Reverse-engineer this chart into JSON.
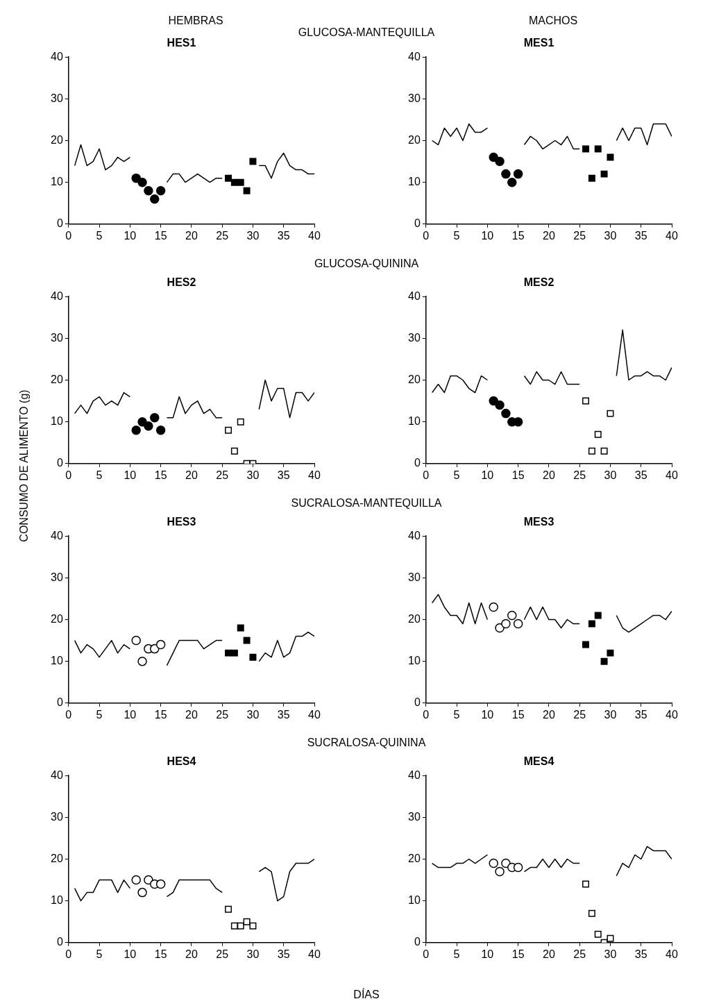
{
  "chart_data": [
    {
      "type": "line",
      "title": "HES1",
      "annotations": [
        "HEMBRAS",
        "GLUCOSA-MANTEQUILLA"
      ],
      "x": [
        1,
        2,
        3,
        4,
        5,
        6,
        7,
        8,
        9,
        10,
        11,
        12,
        13,
        14,
        15,
        16,
        17,
        18,
        19,
        20,
        21,
        22,
        23,
        24,
        25,
        26,
        27,
        28,
        29,
        30,
        31,
        32,
        33,
        34,
        35,
        36,
        37,
        38,
        39,
        40
      ],
      "xlim": [
        0,
        40
      ],
      "xticks": [
        0,
        5,
        10,
        15,
        20,
        25,
        30,
        35,
        40
      ],
      "ylim": [
        0,
        40
      ],
      "yticks": [
        0,
        10,
        20,
        30,
        40
      ],
      "marker": "none",
      "series": [
        {
          "color": "#000000",
          "values": [
            14,
            19,
            14,
            15,
            18,
            13,
            14,
            16,
            15,
            16,
            null,
            null,
            null,
            null,
            null,
            10,
            12,
            12,
            10,
            11,
            12,
            11,
            10,
            11,
            11,
            null,
            null,
            null,
            null,
            null,
            14,
            14,
            11,
            15,
            17,
            14,
            13,
            13,
            12,
            12
          ]
        },
        {
          "type": "scatter",
          "marker": "circle",
          "color": "#000000",
          "x": [
            11,
            12,
            13,
            14,
            15
          ],
          "values": [
            11,
            10,
            8,
            6,
            8
          ]
        },
        {
          "type": "scatter",
          "marker": "square",
          "color": "#000000",
          "x": [
            26,
            27,
            28,
            29,
            30
          ],
          "values": [
            11,
            10,
            10,
            8,
            15
          ]
        }
      ]
    },
    {
      "type": "line",
      "title": "MES1",
      "annotations": [
        "MACHOS"
      ],
      "x": [
        1,
        2,
        3,
        4,
        5,
        6,
        7,
        8,
        9,
        10,
        11,
        12,
        13,
        14,
        15,
        16,
        17,
        18,
        19,
        20,
        21,
        22,
        23,
        24,
        25,
        26,
        27,
        28,
        29,
        30,
        31,
        32,
        33,
        34,
        35,
        36,
        37,
        38,
        39,
        40
      ],
      "xlim": [
        0,
        40
      ],
      "xticks": [
        0,
        5,
        10,
        15,
        20,
        25,
        30,
        35,
        40
      ],
      "ylim": [
        0,
        40
      ],
      "yticks": [
        0,
        10,
        20,
        30,
        40
      ],
      "marker": "none",
      "series": [
        {
          "color": "#000000",
          "values": [
            20,
            19,
            23,
            21,
            23,
            20,
            24,
            22,
            22,
            23,
            null,
            null,
            null,
            null,
            null,
            19,
            21,
            20,
            18,
            19,
            20,
            19,
            21,
            18,
            18,
            null,
            null,
            null,
            null,
            null,
            20,
            23,
            20,
            23,
            23,
            19,
            24,
            24,
            24,
            21
          ]
        },
        {
          "type": "scatter",
          "marker": "circle",
          "color": "#000000",
          "x": [
            11,
            12,
            13,
            14,
            15
          ],
          "values": [
            16,
            15,
            12,
            10,
            12
          ]
        },
        {
          "type": "scatter",
          "marker": "square",
          "color": "#000000",
          "x": [
            26,
            27,
            28,
            29,
            30
          ],
          "values": [
            18,
            11,
            18,
            12,
            16
          ]
        }
      ]
    },
    {
      "type": "line",
      "title": "HES2",
      "annotations": [
        "GLUCOSA-QUININA"
      ],
      "x": [
        1,
        2,
        3,
        4,
        5,
        6,
        7,
        8,
        9,
        10,
        11,
        12,
        13,
        14,
        15,
        16,
        17,
        18,
        19,
        20,
        21,
        22,
        23,
        24,
        25,
        26,
        27,
        28,
        29,
        30,
        31,
        32,
        33,
        34,
        35,
        36,
        37,
        38,
        39,
        40
      ],
      "xlim": [
        0,
        40
      ],
      "xticks": [
        0,
        5,
        10,
        15,
        20,
        25,
        30,
        35,
        40
      ],
      "ylim": [
        0,
        40
      ],
      "yticks": [
        0,
        10,
        20,
        30,
        40
      ],
      "marker": "none",
      "series": [
        {
          "color": "#000000",
          "values": [
            12,
            14,
            12,
            15,
            16,
            14,
            15,
            14,
            17,
            16,
            null,
            null,
            null,
            null,
            null,
            11,
            11,
            16,
            12,
            14,
            15,
            12,
            13,
            11,
            11,
            null,
            null,
            null,
            null,
            null,
            13,
            20,
            15,
            18,
            18,
            11,
            17,
            17,
            15,
            17
          ]
        },
        {
          "type": "scatter",
          "marker": "circle",
          "color": "#000000",
          "x": [
            11,
            12,
            13,
            14,
            15
          ],
          "values": [
            8,
            10,
            9,
            11,
            8
          ]
        },
        {
          "type": "scatter",
          "marker": "square",
          "color": "#ffffff",
          "x": [
            26,
            27,
            28,
            29,
            30
          ],
          "values": [
            8,
            3,
            10,
            0,
            0
          ]
        }
      ]
    },
    {
      "type": "line",
      "title": "MES2",
      "x": [
        1,
        2,
        3,
        4,
        5,
        6,
        7,
        8,
        9,
        10,
        11,
        12,
        13,
        14,
        15,
        16,
        17,
        18,
        19,
        20,
        21,
        22,
        23,
        24,
        25,
        26,
        27,
        28,
        29,
        30,
        31,
        32,
        33,
        34,
        35,
        36,
        37,
        38,
        39,
        40
      ],
      "xlim": [
        0,
        40
      ],
      "xticks": [
        0,
        5,
        10,
        15,
        20,
        25,
        30,
        35,
        40
      ],
      "ylim": [
        0,
        40
      ],
      "yticks": [
        0,
        10,
        20,
        30,
        40
      ],
      "marker": "none",
      "series": [
        {
          "color": "#000000",
          "values": [
            17,
            19,
            17,
            21,
            21,
            20,
            18,
            17,
            21,
            20,
            null,
            null,
            null,
            null,
            null,
            21,
            19,
            22,
            20,
            20,
            19,
            22,
            19,
            19,
            19,
            null,
            null,
            null,
            null,
            null,
            21,
            32,
            20,
            21,
            21,
            22,
            21,
            21,
            20,
            23
          ]
        },
        {
          "type": "scatter",
          "marker": "circle",
          "color": "#000000",
          "x": [
            11,
            12,
            13,
            14,
            15
          ],
          "values": [
            15,
            14,
            12,
            10,
            10
          ]
        },
        {
          "type": "scatter",
          "marker": "square",
          "color": "#ffffff",
          "x": [
            26,
            27,
            28,
            29,
            30
          ],
          "values": [
            15,
            3,
            7,
            3,
            12
          ]
        }
      ]
    },
    {
      "type": "line",
      "title": "HES3",
      "annotations": [
        "SUCRALOSA-MANTEQUILLA"
      ],
      "ylabel": "CONSUMO DE ALIMENTO (g)",
      "x": [
        1,
        2,
        3,
        4,
        5,
        6,
        7,
        8,
        9,
        10,
        11,
        12,
        13,
        14,
        15,
        16,
        17,
        18,
        19,
        20,
        21,
        22,
        23,
        24,
        25,
        26,
        27,
        28,
        29,
        30,
        31,
        32,
        33,
        34,
        35,
        36,
        37,
        38,
        39,
        40
      ],
      "xlim": [
        0,
        40
      ],
      "xticks": [
        0,
        5,
        10,
        15,
        20,
        25,
        30,
        35,
        40
      ],
      "ylim": [
        0,
        40
      ],
      "yticks": [
        0,
        10,
        20,
        30,
        40
      ],
      "marker": "none",
      "series": [
        {
          "color": "#000000",
          "values": [
            15,
            12,
            14,
            13,
            11,
            13,
            15,
            12,
            14,
            13,
            null,
            null,
            null,
            null,
            null,
            9,
            12,
            15,
            15,
            15,
            15,
            13,
            14,
            15,
            15,
            null,
            null,
            null,
            null,
            null,
            10,
            12,
            11,
            15,
            11,
            12,
            16,
            16,
            17,
            16
          ]
        },
        {
          "type": "scatter",
          "marker": "circle",
          "color": "#ffffff",
          "x": [
            11,
            12,
            13,
            14,
            15
          ],
          "values": [
            15,
            10,
            13,
            13,
            14
          ]
        },
        {
          "type": "scatter",
          "marker": "square",
          "color": "#000000",
          "x": [
            26,
            27,
            28,
            29,
            30
          ],
          "values": [
            12,
            12,
            18,
            15,
            11
          ]
        }
      ]
    },
    {
      "type": "line",
      "title": "MES3",
      "x": [
        1,
        2,
        3,
        4,
        5,
        6,
        7,
        8,
        9,
        10,
        11,
        12,
        13,
        14,
        15,
        16,
        17,
        18,
        19,
        20,
        21,
        22,
        23,
        24,
        25,
        26,
        27,
        28,
        29,
        30,
        31,
        32,
        33,
        34,
        35,
        36,
        37,
        38,
        39,
        40
      ],
      "xlim": [
        0,
        40
      ],
      "xticks": [
        0,
        5,
        10,
        15,
        20,
        25,
        30,
        35,
        40
      ],
      "ylim": [
        0,
        40
      ],
      "yticks": [
        0,
        10,
        20,
        30,
        40
      ],
      "marker": "none",
      "series": [
        {
          "color": "#000000",
          "values": [
            24,
            26,
            23,
            21,
            21,
            19,
            24,
            19,
            24,
            20,
            null,
            null,
            null,
            null,
            null,
            20,
            23,
            20,
            23,
            20,
            20,
            18,
            20,
            19,
            19,
            null,
            null,
            null,
            null,
            null,
            21,
            18,
            17,
            18,
            19,
            20,
            21,
            21,
            20,
            22
          ]
        },
        {
          "type": "scatter",
          "marker": "circle",
          "color": "#ffffff",
          "x": [
            11,
            12,
            13,
            14,
            15
          ],
          "values": [
            23,
            18,
            19,
            21,
            19
          ]
        },
        {
          "type": "scatter",
          "marker": "square",
          "color": "#000000",
          "x": [
            26,
            27,
            28,
            29,
            30
          ],
          "values": [
            14,
            19,
            21,
            10,
            12
          ]
        }
      ]
    },
    {
      "type": "line",
      "title": "HES4",
      "annotations": [
        "SUCRALOSA-QUININA"
      ],
      "xlabel": "DÍAS",
      "x": [
        1,
        2,
        3,
        4,
        5,
        6,
        7,
        8,
        9,
        10,
        11,
        12,
        13,
        14,
        15,
        16,
        17,
        18,
        19,
        20,
        21,
        22,
        23,
        24,
        25,
        26,
        27,
        28,
        29,
        30,
        31,
        32,
        33,
        34,
        35,
        36,
        37,
        38,
        39,
        40
      ],
      "xlim": [
        0,
        40
      ],
      "xticks": [
        0,
        5,
        10,
        15,
        20,
        25,
        30,
        35,
        40
      ],
      "ylim": [
        0,
        40
      ],
      "yticks": [
        0,
        10,
        20,
        30,
        40
      ],
      "marker": "none",
      "series": [
        {
          "color": "#000000",
          "values": [
            13,
            10,
            12,
            12,
            15,
            15,
            15,
            12,
            15,
            13,
            null,
            null,
            null,
            null,
            null,
            11,
            12,
            15,
            15,
            15,
            15,
            15,
            15,
            13,
            12,
            null,
            null,
            null,
            null,
            null,
            17,
            18,
            17,
            10,
            11,
            17,
            19,
            19,
            19,
            20
          ]
        },
        {
          "type": "scatter",
          "marker": "circle",
          "color": "#ffffff",
          "x": [
            11,
            12,
            13,
            14,
            15
          ],
          "values": [
            15,
            12,
            15,
            14,
            14
          ]
        },
        {
          "type": "scatter",
          "marker": "square",
          "color": "#ffffff",
          "x": [
            26,
            27,
            28,
            29,
            30
          ],
          "values": [
            8,
            4,
            4,
            5,
            4
          ]
        }
      ]
    },
    {
      "type": "line",
      "title": "MES4",
      "x": [
        1,
        2,
        3,
        4,
        5,
        6,
        7,
        8,
        9,
        10,
        11,
        12,
        13,
        14,
        15,
        16,
        17,
        18,
        19,
        20,
        21,
        22,
        23,
        24,
        25,
        26,
        27,
        28,
        29,
        30,
        31,
        32,
        33,
        34,
        35,
        36,
        37,
        38,
        39,
        40
      ],
      "xlim": [
        0,
        40
      ],
      "xticks": [
        0,
        5,
        10,
        15,
        20,
        25,
        30,
        35,
        40
      ],
      "ylim": [
        0,
        40
      ],
      "yticks": [
        0,
        10,
        20,
        30,
        40
      ],
      "marker": "none",
      "series": [
        {
          "color": "#000000",
          "values": [
            19,
            18,
            18,
            18,
            19,
            19,
            20,
            19,
            20,
            21,
            null,
            null,
            null,
            null,
            null,
            17,
            18,
            18,
            20,
            18,
            20,
            18,
            20,
            19,
            19,
            null,
            null,
            null,
            null,
            null,
            16,
            19,
            18,
            21,
            20,
            23,
            22,
            22,
            22,
            20
          ]
        },
        {
          "type": "scatter",
          "marker": "circle",
          "color": "#ffffff",
          "x": [
            11,
            12,
            13,
            14,
            15
          ],
          "values": [
            19,
            17,
            19,
            18,
            18
          ]
        },
        {
          "type": "scatter",
          "marker": "square",
          "color": "#ffffff",
          "x": [
            26,
            27,
            28,
            29,
            30
          ],
          "values": [
            14,
            7,
            2,
            0,
            1
          ]
        }
      ]
    }
  ]
}
